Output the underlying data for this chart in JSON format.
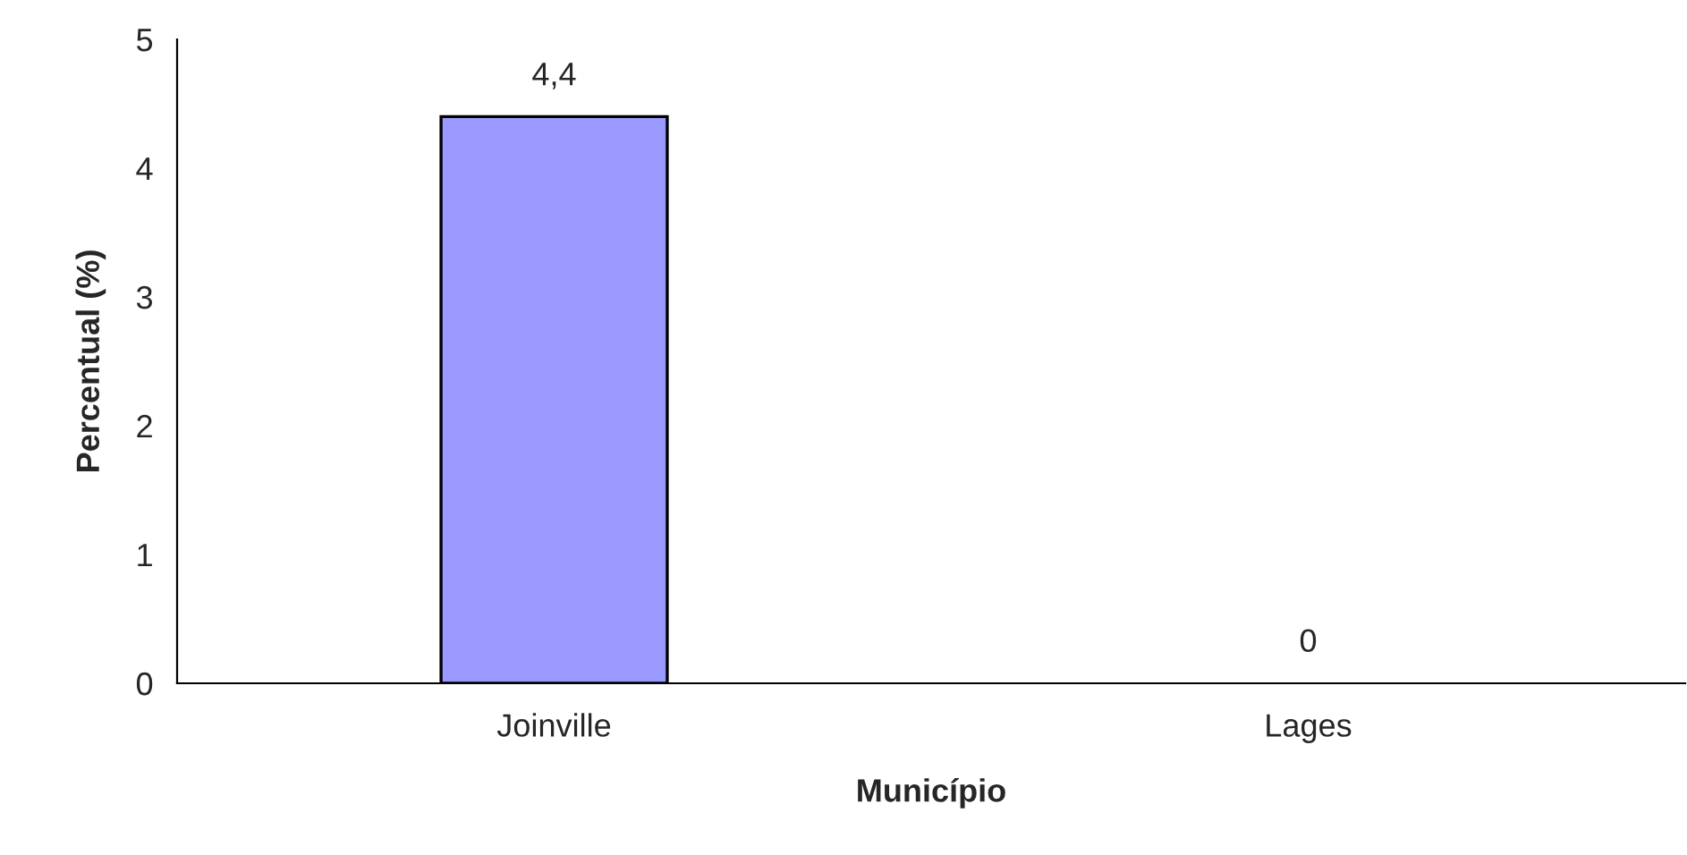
{
  "chart_data": {
    "type": "bar",
    "xlabel": "Município",
    "ylabel": "Percentual (%)",
    "categories": [
      "Joinville",
      "Lages"
    ],
    "values": [
      4.4,
      0
    ],
    "value_labels": [
      "4,4",
      "0"
    ],
    "color": "#9999ff",
    "ylim": [
      0,
      5
    ],
    "yticks": [
      0,
      1,
      2,
      3,
      4,
      5
    ],
    "grid": false,
    "legend": false
  }
}
